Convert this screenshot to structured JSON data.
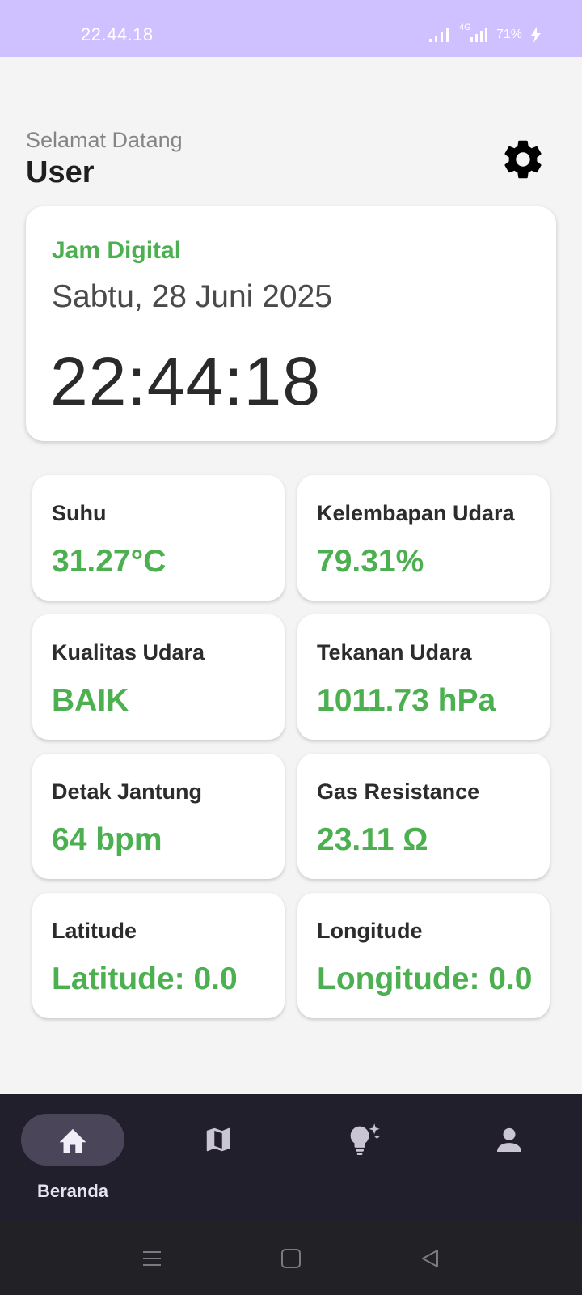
{
  "status_bar": {
    "time": "22.44.18",
    "network": "4G",
    "battery": "71%"
  },
  "header": {
    "greeting": "Selamat Datang",
    "user_name": "User",
    "settings_icon": "gear-icon"
  },
  "clock_card": {
    "label": "Jam Digital",
    "date": "Sabtu, 28 Juni 2025",
    "time": "22:44:18"
  },
  "sensors": [
    {
      "label": "Suhu",
      "value": "31.27°C"
    },
    {
      "label": "Kelembapan Udara",
      "value": "79.31%"
    },
    {
      "label": "Kualitas Udara",
      "value": "BAIK"
    },
    {
      "label": "Tekanan Udara",
      "value": "1011.73 hPa"
    },
    {
      "label": "Detak Jantung",
      "value": "64 bpm"
    },
    {
      "label": "Gas Resistance",
      "value": "23.11 Ω"
    },
    {
      "label": "Latitude",
      "value": "Latitude: 0.0"
    },
    {
      "label": "Longitude",
      "value": "Longitude: 0.0"
    }
  ],
  "bottom_nav": {
    "items": [
      {
        "icon": "home-icon",
        "label": "Beranda",
        "active": true
      },
      {
        "icon": "map-icon",
        "active": false
      },
      {
        "icon": "lightbulb-sparkle-icon",
        "active": false
      },
      {
        "icon": "person-icon",
        "active": false
      }
    ]
  },
  "colors": {
    "accent": "#4caf50",
    "status_bar": "#cfc0ff",
    "nav_bg": "#221f2d",
    "nav_active_pill": "#4a4559"
  }
}
